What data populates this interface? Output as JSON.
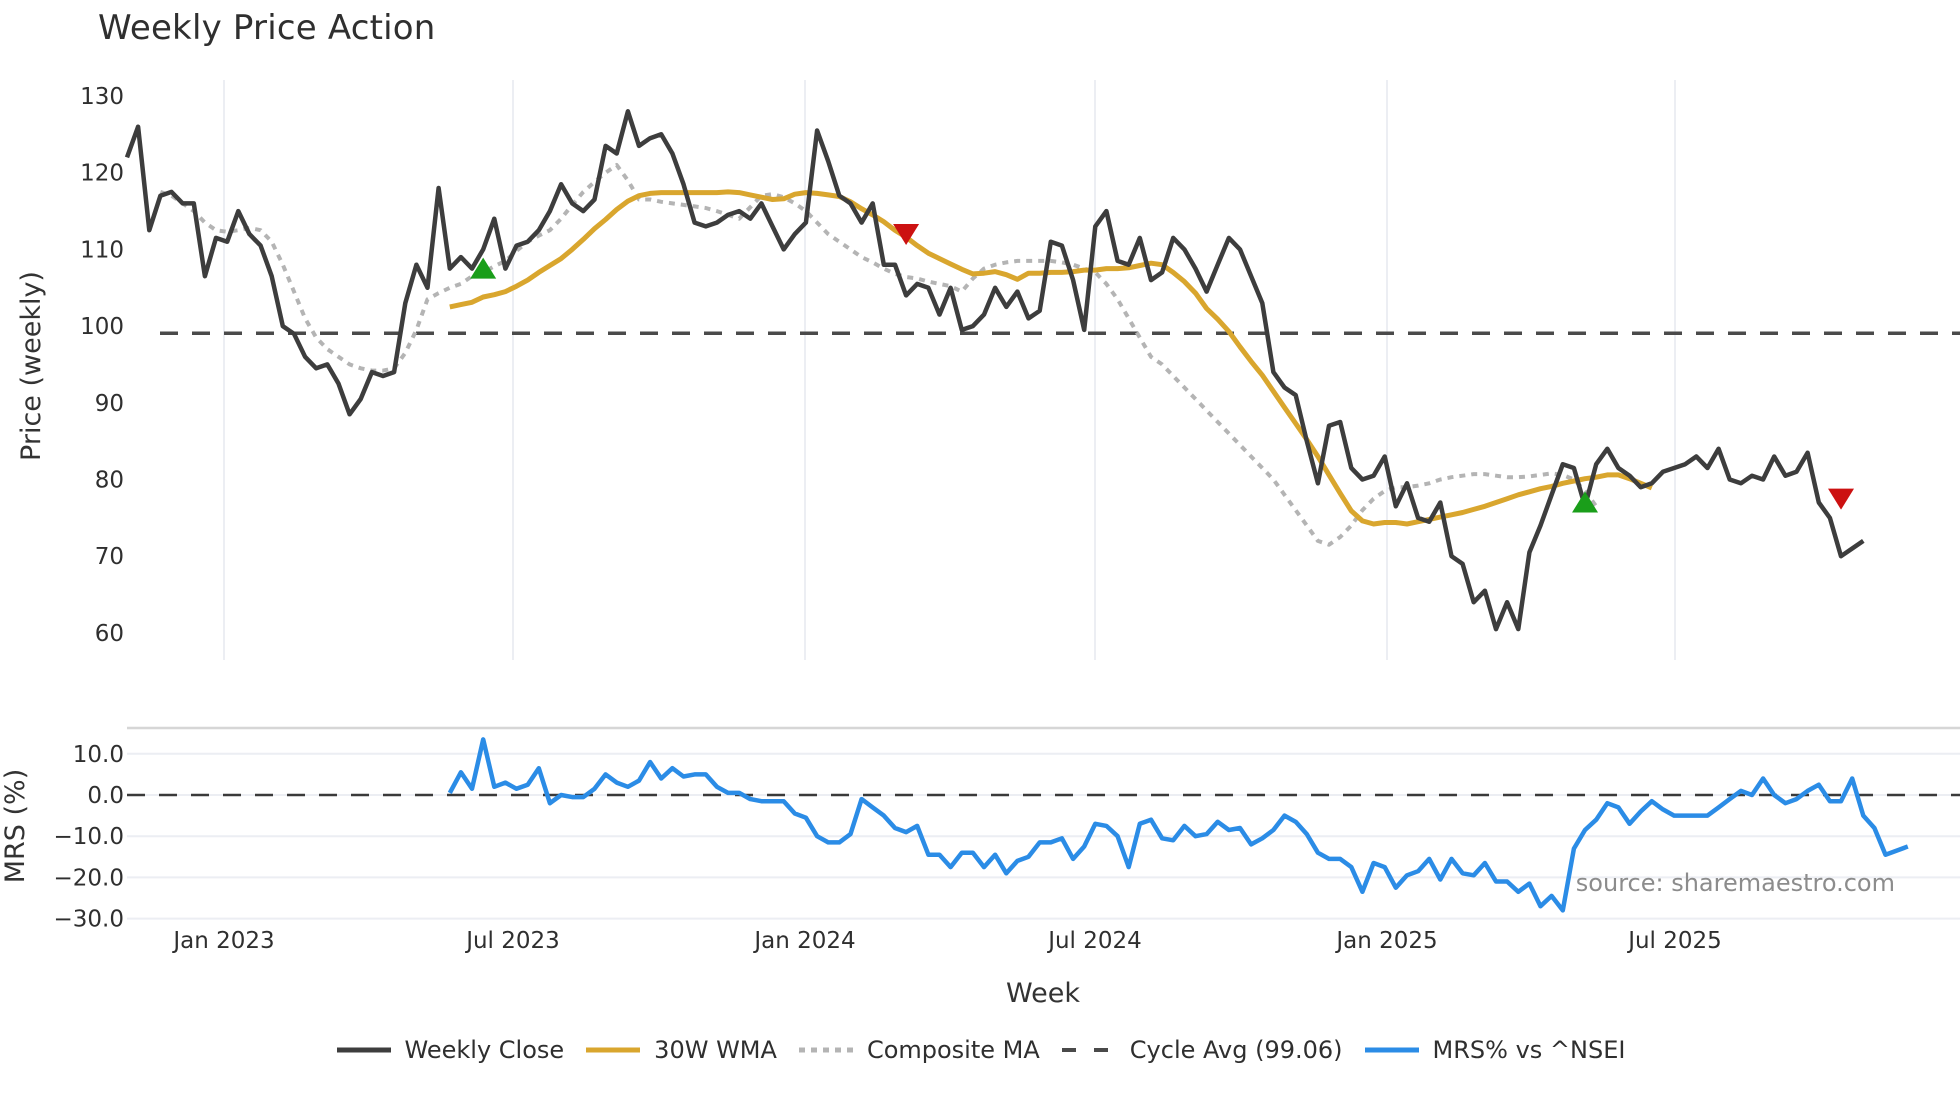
{
  "title": "Weekly Price Action",
  "source_note": "source: sharemaestro.com",
  "colors": {
    "close": "#3d3d3d",
    "wma": "#d9a62e",
    "composite": "#b4b4b4",
    "cycle": "#4a4a4a",
    "mrs": "#2b8ce6",
    "buy_marker": "#1a9e1a",
    "sell_marker": "#cc1111",
    "grid": "#eceef3"
  },
  "legend": [
    {
      "key": "close",
      "label": "Weekly Close",
      "style": "solid"
    },
    {
      "key": "wma",
      "label": "30W WMA",
      "style": "solid"
    },
    {
      "key": "composite",
      "label": "Composite MA",
      "style": "dotted"
    },
    {
      "key": "cycle",
      "label": "Cycle Avg (99.06)",
      "style": "dashed"
    },
    {
      "key": "mrs",
      "label": "MRS% vs ^NSEI",
      "style": "solid"
    }
  ],
  "chart_data": [
    {
      "type": "line",
      "title": "Weekly Price Action",
      "xlabel": "Week",
      "ylabel": "Price (weekly)",
      "ylim": [
        56,
        132
      ],
      "yticks": [
        60,
        70,
        80,
        90,
        100,
        110,
        120,
        130
      ],
      "xticks": [
        "Jan 2023",
        "Jul 2023",
        "Jan 2024",
        "Jul 2024",
        "Jan 2025",
        "Jul 2025"
      ],
      "grid": "vertical",
      "cycle_avg": 99.06,
      "series": [
        {
          "name": "Weekly Close",
          "start_week": 0,
          "values": [
            122,
            126,
            112.5,
            117,
            117.5,
            116,
            116,
            106.5,
            111.5,
            111,
            115,
            112,
            110.5,
            106.5,
            100,
            99,
            96,
            94.5,
            95,
            92.5,
            88.5,
            90.5,
            94,
            93.5,
            94,
            103,
            108,
            105,
            118,
            107.5,
            109,
            107.5,
            110,
            114,
            107.5,
            110.5,
            111,
            112.5,
            115,
            118.5,
            116,
            115,
            116.5,
            123.5,
            122.5,
            128,
            123.5,
            124.5,
            125,
            122.5,
            118.5,
            113.5,
            113,
            113.5,
            114.5,
            115,
            114,
            116,
            113,
            110,
            112,
            113.5,
            125.5,
            121.5,
            117,
            116,
            113.5,
            116,
            108,
            108,
            104,
            105.5,
            105,
            101.5,
            105,
            99.5,
            100,
            101.5,
            105,
            102.5,
            104.5,
            101,
            102,
            111,
            110.5,
            106,
            99.5,
            113,
            115,
            108.5,
            108,
            111.5,
            106,
            107,
            111.5,
            110,
            107.5,
            104.5,
            108,
            111.5,
            110,
            106.5,
            103,
            94,
            92,
            91,
            85,
            79.5,
            87,
            87.5,
            81.5,
            80,
            80.5,
            83,
            76.5,
            79.5,
            75,
            74.5,
            77,
            70,
            69,
            64,
            65.5,
            60.5,
            64,
            60.5,
            70.5,
            74,
            78,
            82,
            81.5,
            76.5,
            82,
            84,
            81.5,
            80.5,
            79,
            79.5,
            81,
            81.5,
            82,
            83,
            81.5,
            84,
            80,
            79.5,
            80.5,
            80,
            83,
            80.5,
            81,
            83.5,
            77,
            75,
            70,
            71,
            72
          ]
        },
        {
          "name": "30W WMA",
          "start_week": 29,
          "values": [
            102.5,
            102.8,
            103.1,
            103.8,
            104.1,
            104.5,
            105.2,
            106,
            107,
            107.9,
            108.8,
            110,
            111.3,
            112.7,
            113.9,
            115.2,
            116.3,
            117,
            117.3,
            117.4,
            117.4,
            117.4,
            117.4,
            117.4,
            117.4,
            117.5,
            117.4,
            117.1,
            116.8,
            116.5,
            116.6,
            117.2,
            117.4,
            117.3,
            117.1,
            116.9,
            116.2,
            115.3,
            114.5,
            113.6,
            112.5,
            111.6,
            110.5,
            109.5,
            108.8,
            108.1,
            107.4,
            106.8,
            106.9,
            107.1,
            106.7,
            106.1,
            106.9,
            106.9,
            107,
            107,
            107.1,
            107.3,
            107.3,
            107.5,
            107.5,
            107.6,
            107.9,
            108.2,
            108,
            107,
            105.8,
            104.3,
            102.3,
            100.9,
            99.3,
            97.3,
            95.4,
            93.6,
            91.5,
            89.4,
            87.3,
            85.2,
            83,
            80.6,
            78.2,
            75.9,
            74.6,
            74.2,
            74.4,
            74.4,
            74.2,
            74.5,
            74.8,
            75.1,
            75.4,
            75.7,
            76.1,
            76.5,
            77,
            77.5,
            78,
            78.4,
            78.8,
            79.1,
            79.5,
            79.8,
            80.1,
            80.3,
            80.6,
            80.6,
            80.1,
            79.5,
            78.9
          ]
        },
        {
          "name": "Composite MA",
          "start_week": 3,
          "values": [
            117.5,
            117,
            116,
            115,
            113.5,
            112.5,
            112.3,
            112.5,
            112.8,
            112.5,
            111,
            108,
            104.5,
            101,
            98.5,
            97,
            96,
            95,
            94.5,
            94.2,
            94.2,
            94.5,
            96.5,
            99.5,
            103.5,
            104.3,
            105,
            105.5,
            106.5,
            107,
            107.8,
            108.5,
            109.8,
            111,
            111.8,
            112.5,
            114,
            115.8,
            117.5,
            118.8,
            120,
            121,
            119,
            116.5,
            116.5,
            116.2,
            116,
            115.8,
            115.6,
            115.4,
            115,
            114.5,
            114,
            115.5,
            117,
            117.2,
            116.8,
            116,
            115,
            113.5,
            112,
            111,
            110,
            109,
            108.3,
            107.5,
            106.8,
            106.4,
            106.2,
            105.8,
            105.5,
            105.2,
            104.5,
            106.2,
            107.5,
            108,
            108.3,
            108.5,
            108.5,
            108.5,
            108.5,
            108.3,
            108,
            107.5,
            107,
            105.5,
            103.5,
            101,
            98.5,
            96,
            95,
            93.5,
            92,
            90.5,
            89,
            87.5,
            86,
            84.5,
            83,
            81.5,
            80,
            78,
            76,
            74,
            72,
            71.5,
            72.5,
            74,
            76,
            77.5,
            78.5,
            79,
            79,
            79.2,
            79.5,
            80,
            80.3,
            80.5,
            80.7,
            80.7,
            80.5,
            80.3,
            80.3,
            80.4,
            80.6,
            80.8,
            80.6,
            80,
            78.5,
            76.5
          ]
        },
        {
          "name": "MRS% vs ^NSEI",
          "start_week": 29,
          "panel": "lower",
          "values": [
            0.5,
            5.5,
            1.5,
            13.5,
            2,
            3,
            1.5,
            2.5,
            6.5,
            -2,
            0,
            -0.5,
            -0.5,
            1.5,
            5,
            3,
            2,
            3.5,
            8,
            4,
            6.5,
            4.5,
            5,
            5,
            2,
            0.5,
            0.5,
            -1,
            -1.5,
            -1.5,
            -1.5,
            -4.5,
            -5.5,
            -10,
            -11.5,
            -11.5,
            -9.5,
            -1,
            -3,
            -5,
            -8,
            -9,
            -7.5,
            -14.5,
            -14.5,
            -17.5,
            -14,
            -14,
            -17.5,
            -14.5,
            -19,
            -16,
            -15,
            -11.5,
            -11.5,
            -10.5,
            -15.5,
            -12.5,
            -7,
            -7.5,
            -10,
            -17.5,
            -7,
            -6,
            -10.5,
            -11,
            -7.5,
            -10,
            -9.5,
            -6.5,
            -8.5,
            -8,
            -12,
            -10.5,
            -8.5,
            -5,
            -6.5,
            -9.5,
            -14,
            -15.5,
            -15.5,
            -17.5,
            -23.5,
            -16.5,
            -17.5,
            -22.5,
            -19.5,
            -18.5,
            -15.5,
            -20.5,
            -15.5,
            -19,
            -19.5,
            -16.5,
            -21,
            -21,
            -23.5,
            -21.5,
            -27,
            -24.5,
            -28,
            -13,
            -8.5,
            -6,
            -2,
            -3,
            -7,
            -4,
            -1.5,
            -3.5,
            -5,
            -5,
            -5,
            -5,
            -3,
            -1,
            1,
            0,
            4,
            0,
            -2,
            -1,
            1,
            2.5,
            -1.5,
            -1.5,
            4,
            -5,
            -8,
            -14.5,
            -13.5,
            -12.5
          ]
        }
      ],
      "markers": [
        {
          "type": "buy",
          "week": 32,
          "value": 107.5
        },
        {
          "type": "sell",
          "week": 70,
          "value": 112
        },
        {
          "type": "buy",
          "week": 131,
          "value": 77
        },
        {
          "type": "sell",
          "week": 154,
          "value": 77.5
        }
      ]
    },
    {
      "type": "line",
      "title": "",
      "xlabel": "Week",
      "ylabel": "MRS (%)",
      "ylim": [
        -31,
        16
      ],
      "yticks": [
        "10.0",
        "0.0",
        "−10.0",
        "−20.0",
        "−30.0"
      ],
      "reference_line": 0,
      "series_ref": "MRS% vs ^NSEI"
    }
  ],
  "axes": {
    "price_ylabel": "Price (weekly)",
    "mrs_ylabel": "MRS (%)",
    "xlabel": "Week",
    "price_yticks": [
      "130",
      "120",
      "110",
      "100",
      "90",
      "80",
      "70",
      "60"
    ],
    "mrs_yticks": [
      "10.0",
      "0.0",
      "−10.0",
      "−20.0",
      "−30.0"
    ],
    "xticks": [
      "Jan 2023",
      "Jul 2023",
      "Jan 2024",
      "Jul 2024",
      "Jan 2025",
      "Jul 2025"
    ]
  }
}
